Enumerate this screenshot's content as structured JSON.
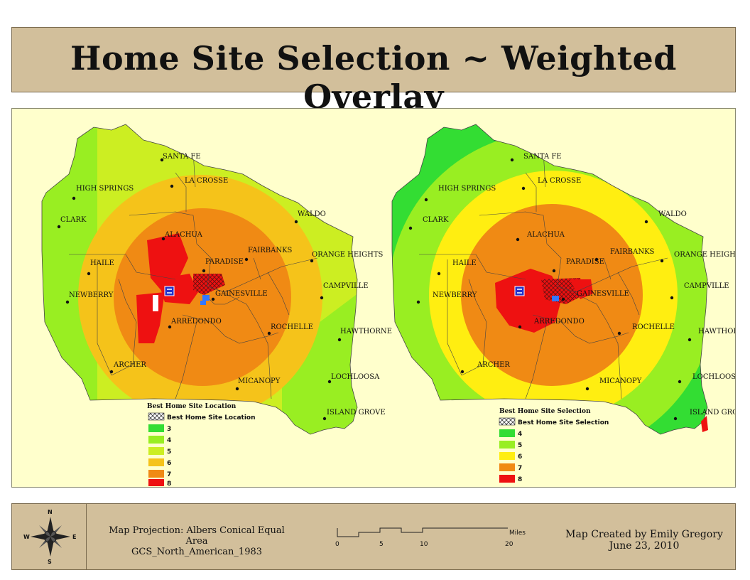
{
  "title": "Home Site Selection ~ Weighted Overlay",
  "colors": {
    "panel": "#d2bf9b",
    "background": "#ffffcc",
    "class3": "#33dd33",
    "class4": "#99ee22",
    "class5": "#ccee22",
    "class6": "#f5c31a",
    "class7": "#f08a14",
    "class8": "#ee1111"
  },
  "map_left": {
    "legend_title": "Best Home Site Location",
    "legend_pattern_label": "Best Home Site Location",
    "classes": [
      "3",
      "4",
      "5",
      "6",
      "7",
      "8"
    ],
    "towns": [
      "SANTA FE",
      "LA CROSSE",
      "HIGH SPRINGS",
      "CLARK",
      "WALDO",
      "ALACHUA",
      "FAIRBANKS",
      "ORANGE HEIGHTS",
      "HAILE",
      "PARADISE",
      "NEWBERRY",
      "GAINESVILLE",
      "CAMPVILLE",
      "ARREDONDO",
      "ROCHELLE",
      "HAWTHORNE",
      "ARCHER",
      "LOCHLOOSA",
      "MICANOPY",
      "ISLAND GROVE"
    ]
  },
  "map_right": {
    "legend_title": "Best Home Site Selection",
    "legend_pattern_label": "Best Home Site Selection",
    "classes": [
      "4",
      "5",
      "6",
      "7",
      "8"
    ],
    "towns": [
      "SANTA FE",
      "LA CROSSE",
      "HIGH SPRINGS",
      "CLARK",
      "WALDO",
      "ALACHUA",
      "FAIRBANKS",
      "ORANGE HEIGHTS",
      "HAILE",
      "PARADISE",
      "NEWBERRY",
      "GAINESVILLE",
      "CAMPVILLE",
      "ARREDONDO",
      "ROCHELLE",
      "HAWTHORNE",
      "ARCHER",
      "LOCHLOOSA",
      "MICANOPY",
      "ISLAND GROVE"
    ]
  },
  "compass": {
    "n": "N",
    "s": "S",
    "e": "E",
    "w": "W",
    "icon": "compass-rose-icon"
  },
  "projection": {
    "line1": "Map Projection: Albers Conical Equal Area",
    "line2": "GCS_North_American_1983"
  },
  "scale_bar": {
    "ticks": [
      "0",
      "5",
      "10",
      "20"
    ],
    "unit": "Miles"
  },
  "credit": {
    "line1": "Map Created by Emily Gregory",
    "line2": "June 23, 2010"
  }
}
